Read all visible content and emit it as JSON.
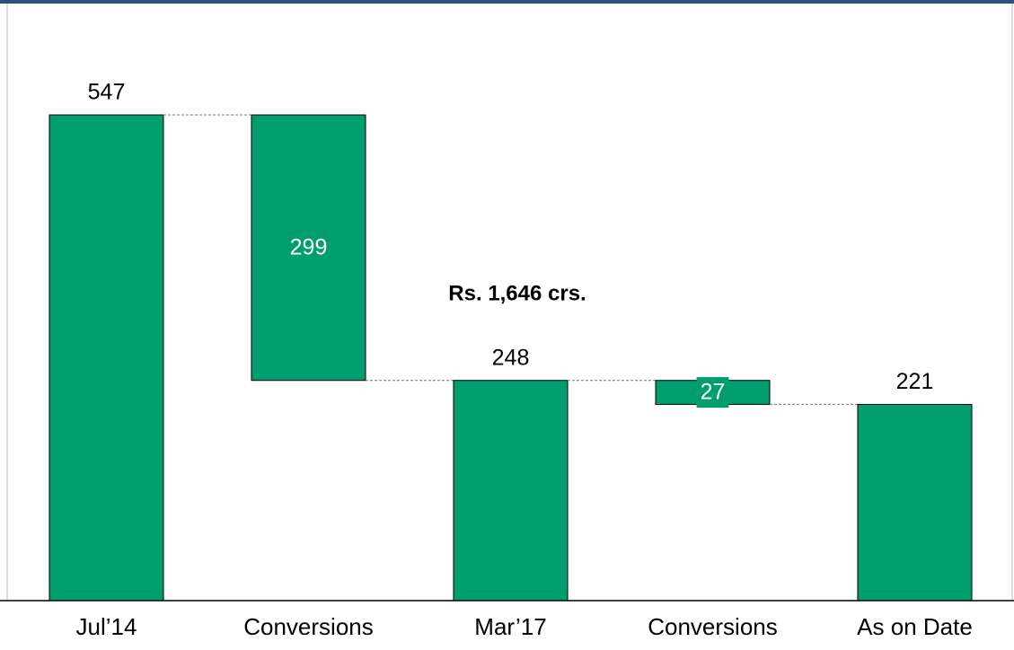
{
  "chart_data": {
    "type": "waterfall",
    "categories": [
      "Jul’14",
      "Conversions",
      "Mar’17",
      "Conversions",
      "As on Date"
    ],
    "values": [
      547,
      -299,
      248,
      -27,
      221
    ],
    "value_labels": [
      "547",
      "299",
      "248",
      "27",
      "221"
    ],
    "measures": [
      "absolute",
      "relative",
      "absolute",
      "relative",
      "absolute"
    ],
    "color": "#009e6c",
    "ylim": [
      0,
      600
    ],
    "annotation": "Rs. 1,646 crs."
  }
}
